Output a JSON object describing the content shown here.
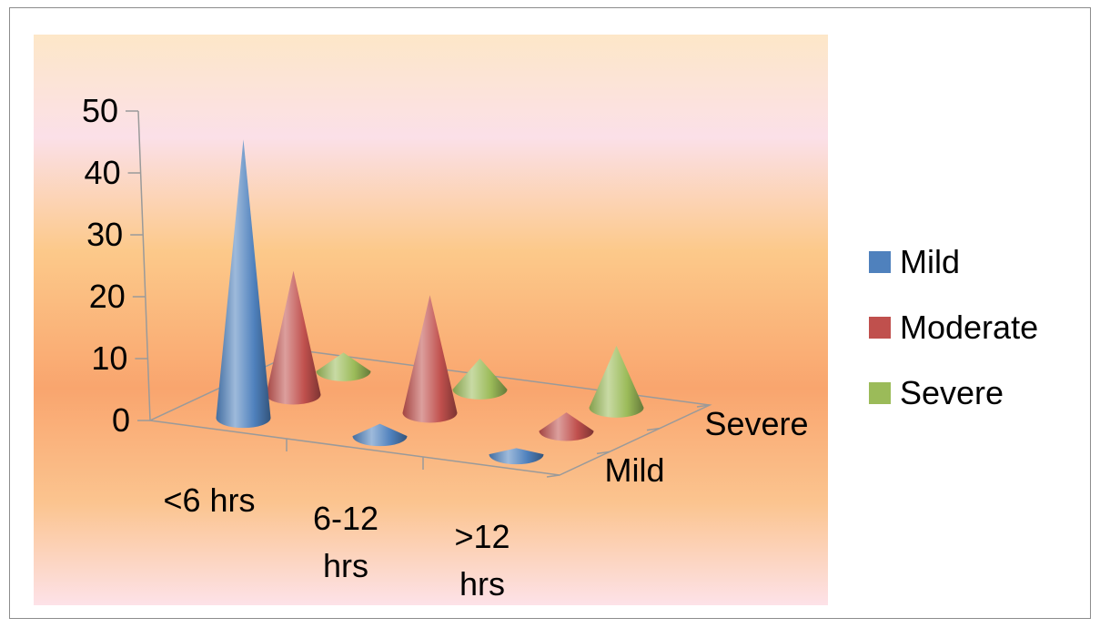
{
  "chart_data": {
    "type": "bar",
    "bar_shape": "cone",
    "view": "3d",
    "categories": [
      "<6 hrs",
      "6-12 hrs",
      ">12 hrs"
    ],
    "category_label_lines": [
      [
        "<6 hrs"
      ],
      [
        "6-12",
        "hrs"
      ],
      [
        ">12",
        "hrs"
      ]
    ],
    "depth_labels": [
      "Mild",
      "Severe"
    ],
    "series": [
      {
        "name": "Mild",
        "color": "#4F81BD",
        "values": [
          45,
          2,
          1
        ]
      },
      {
        "name": "Moderate",
        "color": "#C0504D",
        "values": [
          20,
          19,
          3
        ]
      },
      {
        "name": "Severe",
        "color": "#9BBB59",
        "values": [
          3,
          5,
          10
        ]
      }
    ],
    "y_ticks": [
      "0",
      "10",
      "20",
      "30",
      "40",
      "50"
    ],
    "ylim": [
      0,
      50
    ],
    "legend_position": "right",
    "title": "",
    "xlabel": "",
    "ylabel": ""
  }
}
